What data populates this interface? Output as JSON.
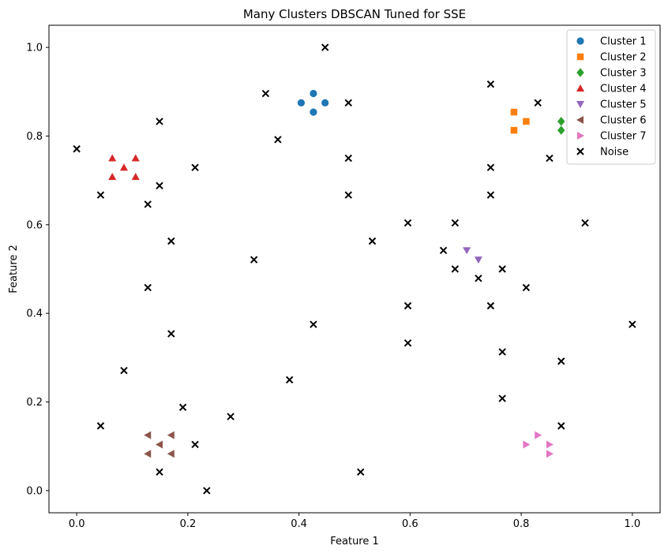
{
  "chart_data": {
    "type": "scatter",
    "title": "Many Clusters DBSCAN Tuned for SSE",
    "xlabel": "Feature 1",
    "ylabel": "Feature 2",
    "xlim": [
      -0.05,
      1.05
    ],
    "ylim": [
      -0.05,
      1.05
    ],
    "xticks": [
      "0.0",
      "0.2",
      "0.4",
      "0.6",
      "0.8",
      "1.0"
    ],
    "yticks": [
      "0.0",
      "0.2",
      "0.4",
      "0.6",
      "0.8",
      "1.0"
    ],
    "grid": false,
    "legend": "top-right",
    "series": [
      {
        "name": "Cluster 1",
        "marker": "circle",
        "color": "#1f77b4",
        "points": [
          [
            0.404,
            0.875
          ],
          [
            0.426,
            0.896
          ],
          [
            0.426,
            0.854
          ],
          [
            0.447,
            0.875
          ]
        ]
      },
      {
        "name": "Cluster 2",
        "marker": "square",
        "color": "#ff7f0e",
        "points": [
          [
            0.787,
            0.854
          ],
          [
            0.787,
            0.813
          ],
          [
            0.809,
            0.833
          ]
        ]
      },
      {
        "name": "Cluster 3",
        "marker": "diamond",
        "color": "#2ca02c",
        "points": [
          [
            0.872,
            0.833
          ],
          [
            0.872,
            0.813
          ]
        ]
      },
      {
        "name": "Cluster 4",
        "marker": "triangle-up",
        "color": "#d62728",
        "points": [
          [
            0.064,
            0.75
          ],
          [
            0.106,
            0.75
          ],
          [
            0.085,
            0.729
          ],
          [
            0.064,
            0.708
          ],
          [
            0.106,
            0.708
          ]
        ]
      },
      {
        "name": "Cluster 5",
        "marker": "triangle-down",
        "color": "#9467bd",
        "points": [
          [
            0.702,
            0.542
          ],
          [
            0.723,
            0.521
          ]
        ]
      },
      {
        "name": "Cluster 6",
        "marker": "triangle-left",
        "color": "#8c564b",
        "points": [
          [
            0.128,
            0.125
          ],
          [
            0.17,
            0.125
          ],
          [
            0.149,
            0.104
          ],
          [
            0.128,
            0.083
          ],
          [
            0.17,
            0.083
          ]
        ]
      },
      {
        "name": "Cluster 7",
        "marker": "triangle-right",
        "color": "#e377c2",
        "points": [
          [
            0.83,
            0.125
          ],
          [
            0.809,
            0.104
          ],
          [
            0.851,
            0.104
          ],
          [
            0.851,
            0.083
          ]
        ]
      },
      {
        "name": "Noise",
        "marker": "x",
        "color": "#000000",
        "points": [
          [
            0.447,
            1.0
          ],
          [
            0.745,
            0.917
          ],
          [
            0.34,
            0.896
          ],
          [
            0.489,
            0.875
          ],
          [
            0.83,
            0.875
          ],
          [
            0.149,
            0.833
          ],
          [
            0.362,
            0.792
          ],
          [
            0.0,
            0.771
          ],
          [
            0.489,
            0.75
          ],
          [
            0.851,
            0.75
          ],
          [
            0.213,
            0.729
          ],
          [
            0.745,
            0.729
          ],
          [
            0.149,
            0.688
          ],
          [
            0.043,
            0.667
          ],
          [
            0.489,
            0.667
          ],
          [
            0.745,
            0.667
          ],
          [
            0.128,
            0.646
          ],
          [
            0.596,
            0.604
          ],
          [
            0.681,
            0.604
          ],
          [
            0.915,
            0.604
          ],
          [
            0.17,
            0.563
          ],
          [
            0.532,
            0.563
          ],
          [
            0.66,
            0.542
          ],
          [
            0.319,
            0.521
          ],
          [
            0.681,
            0.5
          ],
          [
            0.766,
            0.5
          ],
          [
            0.723,
            0.479
          ],
          [
            0.128,
            0.458
          ],
          [
            0.809,
            0.458
          ],
          [
            0.596,
            0.417
          ],
          [
            0.745,
            0.417
          ],
          [
            0.426,
            0.375
          ],
          [
            1.0,
            0.375
          ],
          [
            0.17,
            0.354
          ],
          [
            0.596,
            0.333
          ],
          [
            0.766,
            0.313
          ],
          [
            0.872,
            0.292
          ],
          [
            0.085,
            0.271
          ],
          [
            0.383,
            0.25
          ],
          [
            0.766,
            0.208
          ],
          [
            0.191,
            0.188
          ],
          [
            0.277,
            0.167
          ],
          [
            0.043,
            0.146
          ],
          [
            0.872,
            0.146
          ],
          [
            0.213,
            0.104
          ],
          [
            0.149,
            0.042
          ],
          [
            0.511,
            0.042
          ],
          [
            0.234,
            0.0
          ]
        ]
      }
    ]
  }
}
